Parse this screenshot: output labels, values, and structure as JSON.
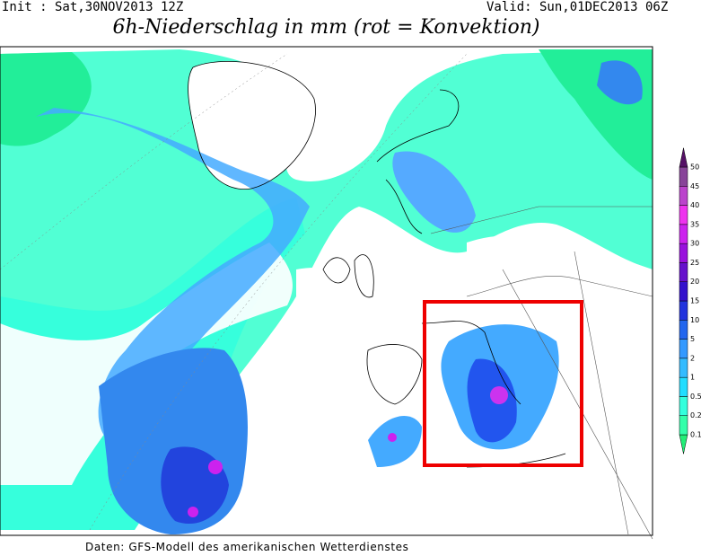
{
  "header": {
    "init": "Init : Sat,30NOV2013 12Z",
    "valid": "Valid: Sun,01DEC2013 06Z",
    "title": "6h-Niederschlag in mm (rot = Konvektion)"
  },
  "colorbar": {
    "labels": [
      "0.1",
      "0.2",
      "0.5",
      "1",
      "2",
      "5",
      "10",
      "15",
      "20",
      "25",
      "30",
      "35",
      "40",
      "45",
      "50"
    ],
    "colors": [
      "#22ee77",
      "#33ffaa",
      "#33ffdd",
      "#22ddff",
      "#33bbff",
      "#3399ff",
      "#2266ee",
      "#2233dd",
      "#3311cc",
      "#6611cc",
      "#9911dd",
      "#cc22ee",
      "#ee33ee",
      "#bb44cc",
      "#884499",
      "#551166"
    ]
  },
  "footer": "Daten: GFS-Modell des amerikanischen Wetterdienstes"
}
